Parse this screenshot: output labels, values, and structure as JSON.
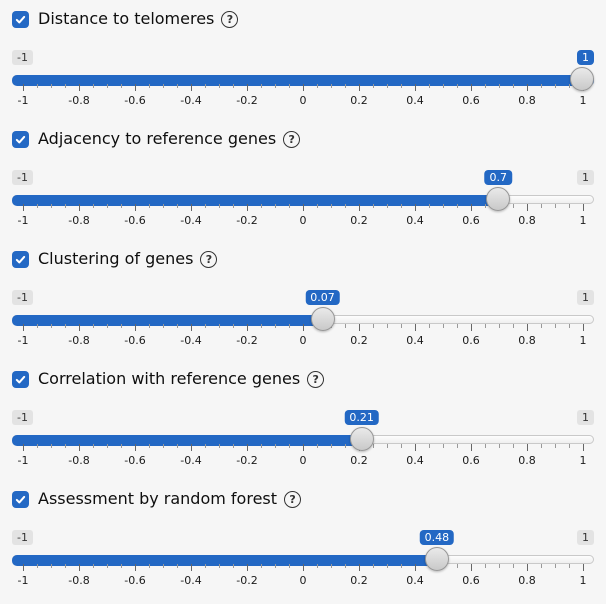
{
  "page": {
    "background": "#f6f6f6"
  },
  "colors": {
    "accent_blue": "#2368c4",
    "minmax_badge_bg": "#e3e3e3",
    "minmax_badge_text": "#333333",
    "value_badge_text": "#ffffff",
    "track_border": "#c9c9c9",
    "handle_border": "#979797"
  },
  "slider_scale": {
    "min": -1,
    "max": 1,
    "tick_labels": [
      "-1",
      "-0.8",
      "-0.6",
      "-0.4",
      "-0.2",
      "0",
      "0.2",
      "0.4",
      "0.6",
      "0.8",
      "1"
    ],
    "minor_ticks_between_major": 3
  },
  "sliders": [
    {
      "label": "Distance to telomeres",
      "checked": true,
      "help_glyph": "?",
      "value": 1,
      "value_label": "1",
      "min_label": "-1",
      "max_label": "1",
      "max_label_visible": false
    },
    {
      "label": "Adjacency to reference genes",
      "checked": true,
      "help_glyph": "?",
      "value": 0.7,
      "value_label": "0.7",
      "min_label": "-1",
      "max_label": "1",
      "max_label_visible": true
    },
    {
      "label": "Clustering of genes",
      "checked": true,
      "help_glyph": "?",
      "value": 0.07,
      "value_label": "0.07",
      "min_label": "-1",
      "max_label": "1",
      "max_label_visible": true
    },
    {
      "label": "Correlation with reference genes",
      "checked": true,
      "help_glyph": "?",
      "value": 0.21,
      "value_label": "0.21",
      "min_label": "-1",
      "max_label": "1",
      "max_label_visible": true
    },
    {
      "label": "Assessment by random forest",
      "checked": true,
      "help_glyph": "?",
      "value": 0.48,
      "value_label": "0.48",
      "min_label": "-1",
      "max_label": "1",
      "max_label_visible": true
    }
  ]
}
